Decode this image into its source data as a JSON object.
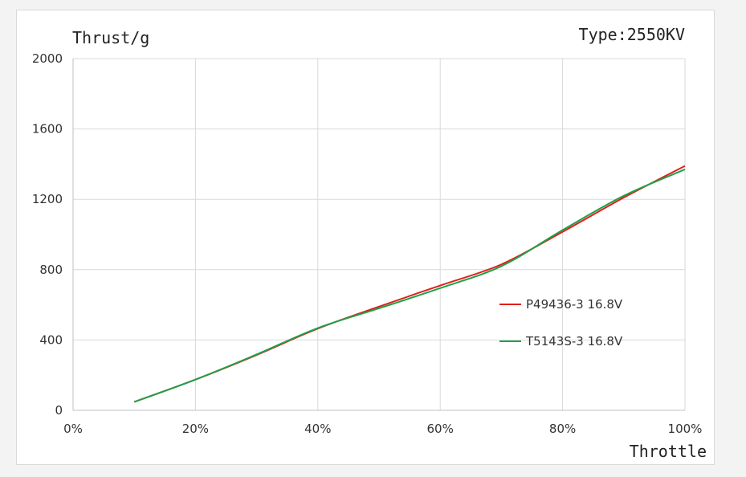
{
  "chart_data": {
    "type": "line",
    "title": "Type:2550KV",
    "xlabel": "Throttle",
    "ylabel": "Thrust/g",
    "xlim": [
      0,
      100
    ],
    "ylim": [
      0,
      2000
    ],
    "x_ticks": [
      0,
      20,
      40,
      60,
      80,
      100
    ],
    "x_tick_labels": [
      "0%",
      "20%",
      "40%",
      "60%",
      "80%",
      "100%"
    ],
    "y_ticks": [
      0,
      400,
      800,
      1200,
      1600,
      2000
    ],
    "y_tick_labels": [
      "0",
      "400",
      "800",
      "1200",
      "1600",
      "2000"
    ],
    "grid": true,
    "legend_position": "right",
    "series": [
      {
        "name": "P49436-3 16.8V",
        "color": "#e0201c",
        "x": [
          10,
          20,
          30,
          40,
          50,
          60,
          70,
          80,
          90,
          100
        ],
        "values": [
          48,
          175,
          315,
          465,
          590,
          710,
          830,
          1015,
          1210,
          1390
        ]
      },
      {
        "name": "T5143S-3 16.8V",
        "color": "#1fa04a",
        "x": [
          10,
          20,
          30,
          40,
          50,
          60,
          70,
          80,
          90,
          100
        ],
        "values": [
          48,
          175,
          318,
          468,
          580,
          695,
          820,
          1025,
          1220,
          1370
        ]
      }
    ]
  }
}
